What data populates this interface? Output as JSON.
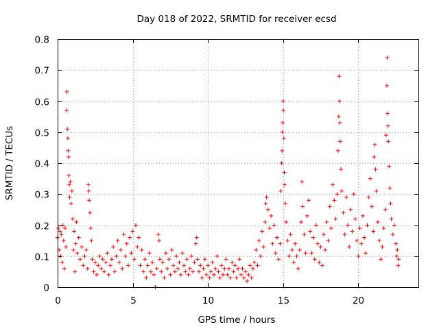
{
  "chart_data": {
    "type": "scatter",
    "title": "Day 018 of 2022, SRMTID for receiver ecsd",
    "xlabel": "GPS time / hours",
    "ylabel": "SRMTID / TECUs",
    "xlim": [
      0,
      24
    ],
    "ylim": [
      0,
      0.8
    ],
    "x_ticks": [
      0,
      5,
      10,
      15,
      20
    ],
    "x_tick_labels": [
      "0",
      "5",
      "10",
      "15",
      "20"
    ],
    "y_ticks": [
      0,
      0.1,
      0.2,
      0.3,
      0.4,
      0.5,
      0.6,
      0.7,
      0.8
    ],
    "y_tick_labels": [
      "0",
      "0.1",
      "0.2",
      "0.3",
      "0.4",
      "0.5",
      "0.6",
      "0.7",
      "0.8"
    ],
    "grid": true,
    "marker": "plus",
    "color": "#ff0000",
    "series": [
      {
        "name": "SRMTID",
        "points": [
          [
            0.0,
            0.16
          ],
          [
            0.05,
            0.19
          ],
          [
            0.1,
            0.12
          ],
          [
            0.15,
            0.18
          ],
          [
            0.2,
            0.1
          ],
          [
            0.25,
            0.17
          ],
          [
            0.3,
            0.08
          ],
          [
            0.35,
            0.2
          ],
          [
            0.4,
            0.15
          ],
          [
            0.45,
            0.06
          ],
          [
            0.5,
            0.19
          ],
          [
            0.55,
            0.13
          ],
          [
            0.6,
            0.57
          ],
          [
            0.62,
            0.63
          ],
          [
            0.65,
            0.51
          ],
          [
            0.68,
            0.48
          ],
          [
            0.7,
            0.44
          ],
          [
            0.73,
            0.42
          ],
          [
            0.75,
            0.36
          ],
          [
            0.78,
            0.33
          ],
          [
            0.8,
            0.29
          ],
          [
            0.85,
            0.34
          ],
          [
            0.9,
            0.27
          ],
          [
            0.95,
            0.31
          ],
          [
            1.0,
            0.22
          ],
          [
            1.05,
            0.12
          ],
          [
            1.1,
            0.18
          ],
          [
            1.15,
            0.05
          ],
          [
            1.2,
            0.14
          ],
          [
            1.25,
            0.21
          ],
          [
            1.3,
            0.11
          ],
          [
            1.4,
            0.16
          ],
          [
            1.5,
            0.09
          ],
          [
            1.6,
            0.13
          ],
          [
            1.7,
            0.07
          ],
          [
            1.8,
            0.1
          ],
          [
            1.9,
            0.12
          ],
          [
            2.0,
            0.06
          ],
          [
            2.05,
            0.33
          ],
          [
            2.08,
            0.31
          ],
          [
            2.1,
            0.28
          ],
          [
            2.15,
            0.24
          ],
          [
            2.2,
            0.19
          ],
          [
            2.25,
            0.15
          ],
          [
            2.3,
            0.09
          ],
          [
            2.4,
            0.05
          ],
          [
            2.5,
            0.08
          ],
          [
            2.6,
            0.04
          ],
          [
            2.7,
            0.07
          ],
          [
            2.8,
            0.1
          ],
          [
            2.9,
            0.06
          ],
          [
            3.0,
            0.09
          ],
          [
            3.1,
            0.05
          ],
          [
            3.2,
            0.08
          ],
          [
            3.3,
            0.11
          ],
          [
            3.4,
            0.04
          ],
          [
            3.5,
            0.07
          ],
          [
            3.6,
            0.09
          ],
          [
            3.7,
            0.13
          ],
          [
            3.8,
            0.05
          ],
          [
            3.9,
            0.1
          ],
          [
            4.0,
            0.15
          ],
          [
            4.1,
            0.08
          ],
          [
            4.2,
            0.12
          ],
          [
            4.3,
            0.06
          ],
          [
            4.4,
            0.17
          ],
          [
            4.5,
            0.1
          ],
          [
            4.6,
            0.14
          ],
          [
            4.7,
            0.07
          ],
          [
            4.8,
            0.16
          ],
          [
            4.9,
            0.11
          ],
          [
            5.0,
            0.18
          ],
          [
            5.1,
            0.09
          ],
          [
            5.2,
            0.2
          ],
          [
            5.3,
            0.13
          ],
          [
            5.4,
            0.16
          ],
          [
            5.5,
            0.07
          ],
          [
            5.6,
            0.12
          ],
          [
            5.7,
            0.05
          ],
          [
            5.8,
            0.09
          ],
          [
            5.9,
            0.03
          ],
          [
            6.0,
            0.07
          ],
          [
            6.1,
            0.11
          ],
          [
            6.2,
            0.05
          ],
          [
            6.3,
            0.08
          ],
          [
            6.4,
            0.04
          ],
          [
            6.5,
            0.0
          ],
          [
            6.6,
            0.06
          ],
          [
            6.7,
            0.17
          ],
          [
            6.75,
            0.15
          ],
          [
            6.8,
            0.09
          ],
          [
            6.9,
            0.05
          ],
          [
            7.0,
            0.08
          ],
          [
            7.1,
            0.03
          ],
          [
            7.2,
            0.11
          ],
          [
            7.3,
            0.06
          ],
          [
            7.4,
            0.09
          ],
          [
            7.5,
            0.04
          ],
          [
            7.6,
            0.12
          ],
          [
            7.7,
            0.07
          ],
          [
            7.8,
            0.05
          ],
          [
            7.9,
            0.1
          ],
          [
            8.0,
            0.06
          ],
          [
            8.1,
            0.08
          ],
          [
            8.2,
            0.04
          ],
          [
            8.3,
            0.11
          ],
          [
            8.4,
            0.07
          ],
          [
            8.5,
            0.05
          ],
          [
            8.6,
            0.09
          ],
          [
            8.7,
            0.04
          ],
          [
            8.8,
            0.06
          ],
          [
            8.9,
            0.1
          ],
          [
            9.0,
            0.05
          ],
          [
            9.1,
            0.08
          ],
          [
            9.2,
            0.14
          ],
          [
            9.25,
            0.16
          ],
          [
            9.3,
            0.09
          ],
          [
            9.4,
            0.05
          ],
          [
            9.5,
            0.07
          ],
          [
            9.6,
            0.03
          ],
          [
            9.7,
            0.06
          ],
          [
            9.8,
            0.09
          ],
          [
            9.9,
            0.04
          ],
          [
            10.0,
            0.07
          ],
          [
            10.1,
            0.03
          ],
          [
            10.2,
            0.05
          ],
          [
            10.3,
            0.08
          ],
          [
            10.4,
            0.04
          ],
          [
            10.5,
            0.06
          ],
          [
            10.6,
            0.1
          ],
          [
            10.7,
            0.05
          ],
          [
            10.8,
            0.03
          ],
          [
            10.9,
            0.07
          ],
          [
            11.0,
            0.04
          ],
          [
            11.1,
            0.06
          ],
          [
            11.2,
            0.09
          ],
          [
            11.3,
            0.04
          ],
          [
            11.4,
            0.06
          ],
          [
            11.5,
            0.03
          ],
          [
            11.6,
            0.08
          ],
          [
            11.7,
            0.05
          ],
          [
            11.8,
            0.07
          ],
          [
            11.9,
            0.03
          ],
          [
            12.0,
            0.06
          ],
          [
            12.1,
            0.09
          ],
          [
            12.2,
            0.04
          ],
          [
            12.3,
            0.06
          ],
          [
            12.4,
            0.03
          ],
          [
            12.5,
            0.05
          ],
          [
            12.6,
            0.02
          ],
          [
            12.7,
            0.04
          ],
          [
            12.8,
            0.07
          ],
          [
            12.9,
            0.03
          ],
          [
            13.0,
            0.06
          ],
          [
            13.1,
            0.08
          ],
          [
            13.2,
            0.12
          ],
          [
            13.3,
            0.07
          ],
          [
            13.4,
            0.15
          ],
          [
            13.5,
            0.1
          ],
          [
            13.6,
            0.18
          ],
          [
            13.7,
            0.13
          ],
          [
            13.8,
            0.21
          ],
          [
            13.85,
            0.27
          ],
          [
            13.9,
            0.29
          ],
          [
            14.0,
            0.25
          ],
          [
            14.1,
            0.19
          ],
          [
            14.2,
            0.23
          ],
          [
            14.3,
            0.14
          ],
          [
            14.4,
            0.2
          ],
          [
            14.5,
            0.11
          ],
          [
            14.6,
            0.16
          ],
          [
            14.7,
            0.09
          ],
          [
            14.8,
            0.14
          ],
          [
            14.85,
            0.31
          ],
          [
            14.9,
            0.4
          ],
          [
            14.93,
            0.44
          ],
          [
            14.95,
            0.5
          ],
          [
            14.97,
            0.53
          ],
          [
            15.0,
            0.6
          ],
          [
            15.02,
            0.57
          ],
          [
            15.05,
            0.48
          ],
          [
            15.08,
            0.37
          ],
          [
            15.1,
            0.33
          ],
          [
            15.15,
            0.27
          ],
          [
            15.2,
            0.21
          ],
          [
            15.3,
            0.15
          ],
          [
            15.4,
            0.1
          ],
          [
            15.5,
            0.17
          ],
          [
            15.6,
            0.12
          ],
          [
            15.7,
            0.08
          ],
          [
            15.8,
            0.14
          ],
          [
            15.9,
            0.1
          ],
          [
            16.0,
            0.06
          ],
          [
            16.1,
            0.12
          ],
          [
            16.2,
            0.21
          ],
          [
            16.25,
            0.34
          ],
          [
            16.3,
            0.26
          ],
          [
            16.4,
            0.17
          ],
          [
            16.5,
            0.11
          ],
          [
            16.6,
            0.23
          ],
          [
            16.7,
            0.28
          ],
          [
            16.8,
            0.18
          ],
          [
            16.9,
            0.11
          ],
          [
            17.0,
            0.16
          ],
          [
            17.1,
            0.09
          ],
          [
            17.2,
            0.2
          ],
          [
            17.3,
            0.14
          ],
          [
            17.4,
            0.08
          ],
          [
            17.5,
            0.13
          ],
          [
            17.6,
            0.07
          ],
          [
            17.7,
            0.17
          ],
          [
            17.8,
            0.12
          ],
          [
            17.9,
            0.21
          ],
          [
            18.0,
            0.15
          ],
          [
            18.1,
            0.26
          ],
          [
            18.2,
            0.19
          ],
          [
            18.3,
            0.33
          ],
          [
            18.4,
            0.28
          ],
          [
            18.5,
            0.22
          ],
          [
            18.6,
            0.3
          ],
          [
            18.65,
            0.44
          ],
          [
            18.7,
            0.55
          ],
          [
            18.72,
            0.68
          ],
          [
            18.75,
            0.6
          ],
          [
            18.78,
            0.53
          ],
          [
            18.8,
            0.47
          ],
          [
            18.85,
            0.38
          ],
          [
            18.9,
            0.31
          ],
          [
            19.0,
            0.24
          ],
          [
            19.1,
            0.17
          ],
          [
            19.2,
            0.29
          ],
          [
            19.3,
            0.2
          ],
          [
            19.4,
            0.13
          ],
          [
            19.5,
            0.25
          ],
          [
            19.6,
            0.18
          ],
          [
            19.7,
            0.3
          ],
          [
            19.8,
            0.22
          ],
          [
            19.9,
            0.15
          ],
          [
            20.0,
            0.1
          ],
          [
            20.1,
            0.19
          ],
          [
            20.2,
            0.14
          ],
          [
            20.3,
            0.23
          ],
          [
            20.4,
            0.16
          ],
          [
            20.5,
            0.11
          ],
          [
            20.6,
            0.2
          ],
          [
            20.7,
            0.29
          ],
          [
            20.8,
            0.35
          ],
          [
            20.9,
            0.26
          ],
          [
            21.0,
            0.18
          ],
          [
            21.05,
            0.42
          ],
          [
            21.1,
            0.46
          ],
          [
            21.15,
            0.38
          ],
          [
            21.2,
            0.31
          ],
          [
            21.3,
            0.21
          ],
          [
            21.4,
            0.15
          ],
          [
            21.5,
            0.09
          ],
          [
            21.6,
            0.13
          ],
          [
            21.7,
            0.19
          ],
          [
            21.8,
            0.25
          ],
          [
            21.85,
            0.49
          ],
          [
            21.9,
            0.65
          ],
          [
            21.92,
            0.74
          ],
          [
            21.95,
            0.56
          ],
          [
            21.98,
            0.52
          ],
          [
            22.0,
            0.47
          ],
          [
            22.05,
            0.39
          ],
          [
            22.1,
            0.32
          ],
          [
            22.15,
            0.27
          ],
          [
            22.2,
            0.22
          ],
          [
            22.3,
            0.17
          ],
          [
            22.4,
            0.2
          ],
          [
            22.5,
            0.14
          ],
          [
            22.55,
            0.1
          ],
          [
            22.6,
            0.12
          ],
          [
            22.65,
            0.07
          ],
          [
            22.7,
            0.09
          ]
        ]
      }
    ]
  }
}
